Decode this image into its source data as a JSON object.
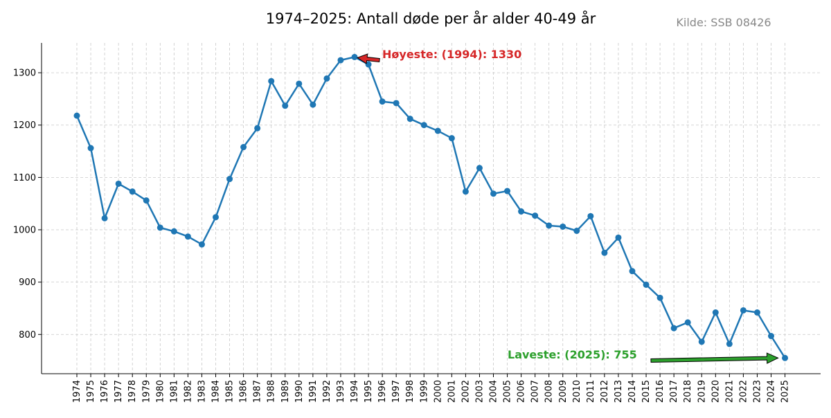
{
  "chart_data": {
    "type": "line",
    "title": "1974–2025: Antall døde per år alder 40-49 år",
    "source": "Kilde: SSB 08426",
    "xlabel": "",
    "ylabel": "",
    "x": [
      1974,
      1975,
      1976,
      1977,
      1978,
      1979,
      1980,
      1981,
      1982,
      1983,
      1984,
      1985,
      1986,
      1987,
      1988,
      1989,
      1990,
      1991,
      1992,
      1993,
      1994,
      1995,
      1996,
      1997,
      1998,
      1999,
      2000,
      2001,
      2002,
      2003,
      2004,
      2005,
      2006,
      2007,
      2008,
      2009,
      2010,
      2011,
      2012,
      2013,
      2014,
      2015,
      2016,
      2017,
      2018,
      2019,
      2020,
      2021,
      2022,
      2023,
      2024,
      2025
    ],
    "values": [
      1218,
      1156,
      1022,
      1088,
      1073,
      1056,
      1004,
      997,
      987,
      972,
      1024,
      1097,
      1158,
      1194,
      1284,
      1237,
      1279,
      1239,
      1289,
      1324,
      1330,
      1316,
      1245,
      1242,
      1212,
      1200,
      1189,
      1175,
      1073,
      1118,
      1069,
      1074,
      1035,
      1027,
      1008,
      1006,
      998,
      1026,
      956,
      985,
      921,
      895,
      870,
      812,
      823,
      786,
      842,
      782,
      846,
      842,
      797,
      755
    ],
    "ylim": [
      725,
      1357
    ],
    "yticks": [
      800,
      900,
      1000,
      1100,
      1200,
      1300
    ],
    "grid": true,
    "color": "#1f77b4",
    "annotations": [
      {
        "kind": "max",
        "text": "Høyeste: (1994): 1330",
        "x": 1994,
        "y": 1330,
        "color": "#d62728"
      },
      {
        "kind": "min",
        "text": "Laveste: (2025): 755",
        "x": 2025,
        "y": 755,
        "color": "#2ca02c"
      }
    ]
  }
}
